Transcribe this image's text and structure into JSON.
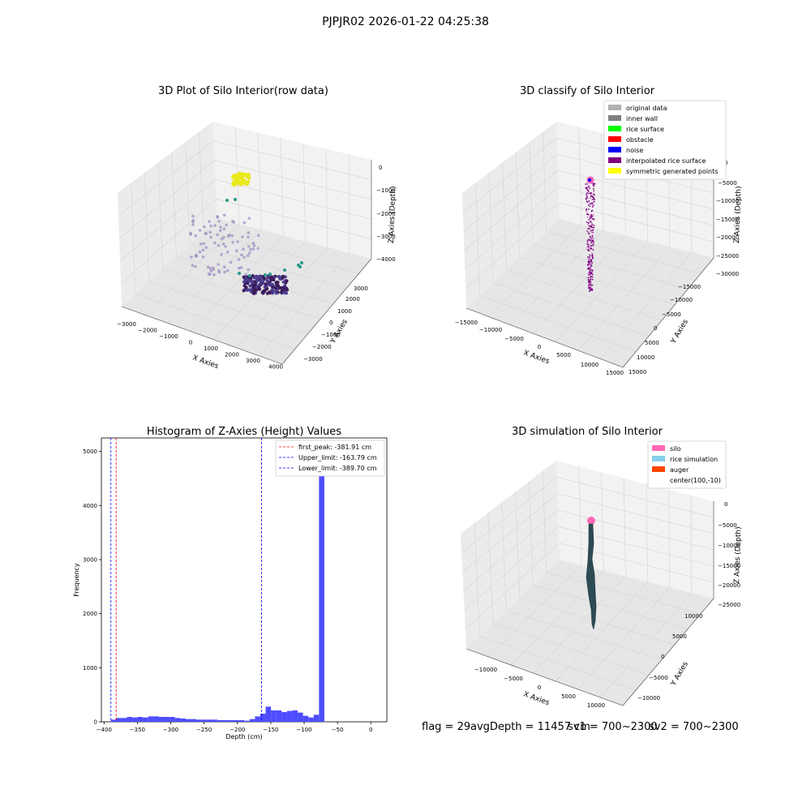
{
  "suptitle": "PJPJR02 2026-01-22 04:25:38",
  "footer": {
    "flag": "flag = 29",
    "avg_depth": "avgDepth = 11457 cm",
    "sv1": "sv1 = 700~2300",
    "sv2": "sv2 = 700~2300"
  },
  "colors": {
    "original_data": "#b0b0b0",
    "inner_wall": "#808080",
    "rice_surface": "#00ff00",
    "obstacle": "#ff0000",
    "noise": "#0000ff",
    "interpolated": "#800080",
    "symmetric": "#ffff00",
    "silo": "#ff69b4",
    "rice_sim": "#87ceeb",
    "auger": "#ff4500",
    "hist_bar": "#4d4dff",
    "first_peak": "#ff0000",
    "limits": "#0000ff"
  },
  "chart_data": [
    {
      "type": "scatter",
      "title": "3D Plot of Silo Interior(row data)",
      "xlabel": "X Axies",
      "ylabel": "Y Axies",
      "zlabel": "Z Axies (Depth)",
      "x_ticks": [
        "−3000",
        "−2000",
        "−1000",
        "0",
        "1000",
        "2000",
        "3000",
        "4000"
      ],
      "y_ticks": [
        "−3000",
        "−2000",
        "−1000",
        "0",
        "1000",
        "2000",
        "3000"
      ],
      "z_ticks": [
        "0",
        "−1000",
        "−2000",
        "−3000",
        "−4000"
      ]
    },
    {
      "type": "scatter",
      "title": "3D classify of Silo Interior",
      "xlabel": "X Axies",
      "ylabel": "Y Axies",
      "zlabel": "Z Axies (Depth)",
      "x_ticks": [
        "−15000",
        "−10000",
        "−5000",
        "0",
        "5000",
        "10000",
        "15000"
      ],
      "y_ticks": [
        "−15000",
        "−10000",
        "−5000",
        "0",
        "5000",
        "10000",
        "15000"
      ],
      "z_ticks": [
        "0",
        "−5000",
        "−10000",
        "−15000",
        "−20000",
        "−25000",
        "−30000"
      ],
      "legend": [
        {
          "label": "original data",
          "color": "#b0b0b0"
        },
        {
          "label": "inner wall",
          "color": "#808080"
        },
        {
          "label": "rice surface",
          "color": "#00ff00"
        },
        {
          "label": "obstacle",
          "color": "#ff0000"
        },
        {
          "label": "noise",
          "color": "#0000ff"
        },
        {
          "label": "interpolated rice surface",
          "color": "#800080"
        },
        {
          "label": "symmetric generated points",
          "color": "#ffff00"
        }
      ]
    },
    {
      "type": "bar",
      "title": "Histogram of Z-Axies (Height) Values",
      "xlabel": "Depth (cm)",
      "ylabel": "Frequency",
      "xlim": [
        -404,
        24
      ],
      "ylim": [
        0,
        5250
      ],
      "x_ticks": [
        -400,
        -350,
        -300,
        -250,
        -200,
        -150,
        -100,
        -50,
        0
      ],
      "y_ticks": [
        0,
        1000,
        2000,
        3000,
        4000,
        5000
      ],
      "bin_edges_start": -389.7,
      "bin_width": 8,
      "values": [
        40,
        70,
        70,
        90,
        80,
        90,
        80,
        100,
        100,
        90,
        90,
        90,
        70,
        60,
        50,
        50,
        40,
        40,
        40,
        40,
        30,
        30,
        30,
        30,
        30,
        20,
        50,
        100,
        150,
        280,
        210,
        210,
        180,
        200,
        210,
        170,
        110,
        80,
        130,
        5000
      ],
      "vlines": [
        {
          "label": "first_peak: -381.91 cm",
          "x": -381.91,
          "color": "#ff0000"
        },
        {
          "label": "Upper_limit: -163.79 cm",
          "x": -163.79,
          "color": "#0000ff"
        },
        {
          "label": "Lower_limit: -389.70 cm",
          "x": -389.7,
          "color": "#0000ff"
        }
      ]
    },
    {
      "type": "scatter",
      "title": "3D simulation of Silo Interior",
      "xlabel": "X Axies",
      "ylabel": "Y Axies",
      "zlabel": "Z Axies (Depth)",
      "x_ticks": [
        "−10000",
        "−5000",
        "0",
        "5000",
        "10000"
      ],
      "y_ticks": [
        "−10000",
        "−5000",
        "0",
        "5000",
        "10000"
      ],
      "z_ticks": [
        "0",
        "−5000",
        "−10000",
        "−15000",
        "−20000",
        "−25000"
      ],
      "legend": [
        {
          "label": "silo",
          "color": "#ff69b4"
        },
        {
          "label": "rice simulation",
          "color": "#87ceeb"
        },
        {
          "label": "auger",
          "color": "#ff4500"
        },
        {
          "label": "center(100,-10)",
          "color": ""
        }
      ]
    }
  ]
}
